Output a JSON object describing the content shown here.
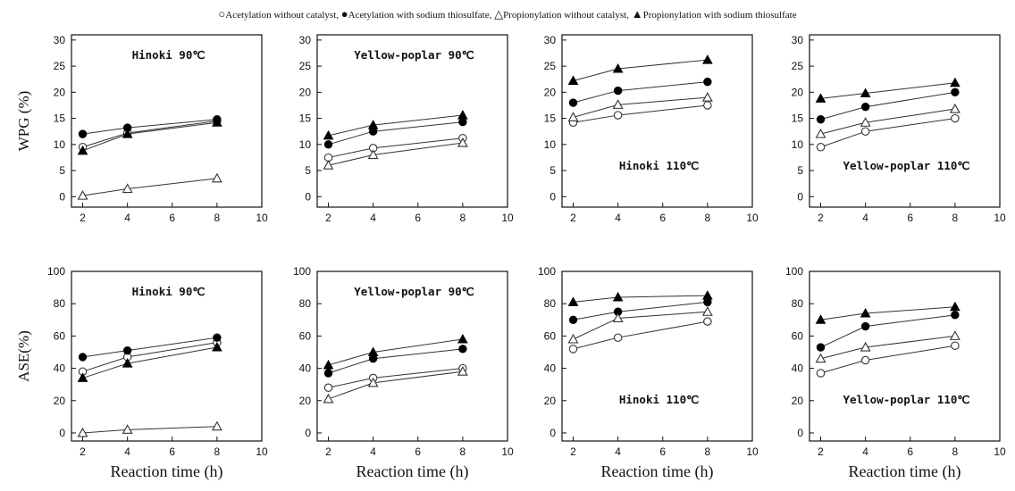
{
  "legend": {
    "s1_sym": "○",
    "s1_label": "Acetylation without catalyst,",
    "s2_sym": "●",
    "s2_label": "Acetylation with sodium thiosulfate,",
    "s3_sym": "△",
    "s3_label": "Propionylation without catalyst,",
    "s4_sym": "▲",
    "s4_label": "Propionylation with sodium thiosulfate"
  },
  "colors": {
    "axis": "#111111",
    "series": "#333333"
  },
  "chart_data": [
    {
      "type": "line",
      "title": "Hinoki 90℃",
      "title_pos": "top",
      "ylabel": "WPG (%)",
      "xlabel": "",
      "xlim": [
        1.5,
        10
      ],
      "ylim": [
        -2,
        31
      ],
      "xticks": [
        2,
        4,
        6,
        8,
        10
      ],
      "yticks": [
        0,
        5,
        10,
        15,
        20,
        25,
        30
      ],
      "x": [
        2,
        4,
        8
      ],
      "series": [
        {
          "marker": "open-circle",
          "values": [
            9.5,
            12.2,
            14.5
          ]
        },
        {
          "marker": "filled-circle",
          "values": [
            12.0,
            13.2,
            14.8
          ]
        },
        {
          "marker": "open-triangle",
          "values": [
            0.2,
            1.5,
            3.5
          ]
        },
        {
          "marker": "filled-triangle",
          "values": [
            8.8,
            12.0,
            14.2
          ]
        }
      ]
    },
    {
      "type": "line",
      "title": "Yellow-poplar 90℃",
      "title_pos": "top",
      "ylabel": "",
      "xlabel": "",
      "xlim": [
        1.5,
        10
      ],
      "ylim": [
        -2,
        31
      ],
      "xticks": [
        2,
        4,
        6,
        8,
        10
      ],
      "yticks": [
        0,
        5,
        10,
        15,
        20,
        25,
        30
      ],
      "x": [
        2,
        4,
        8
      ],
      "series": [
        {
          "marker": "open-circle",
          "values": [
            7.5,
            9.3,
            11.2
          ]
        },
        {
          "marker": "filled-circle",
          "values": [
            10.0,
            12.5,
            14.3
          ]
        },
        {
          "marker": "open-triangle",
          "values": [
            6.0,
            8.0,
            10.3
          ]
        },
        {
          "marker": "filled-triangle",
          "values": [
            11.7,
            13.7,
            15.6
          ]
        }
      ]
    },
    {
      "type": "line",
      "title": "Hinoki 110℃",
      "title_pos": "bottom",
      "ylabel": "",
      "xlabel": "",
      "xlim": [
        1.5,
        10
      ],
      "ylim": [
        -2,
        31
      ],
      "xticks": [
        2,
        4,
        6,
        8,
        10
      ],
      "yticks": [
        0,
        5,
        10,
        15,
        20,
        25,
        30
      ],
      "x": [
        2,
        4,
        8
      ],
      "series": [
        {
          "marker": "open-circle",
          "values": [
            14.2,
            15.6,
            17.5
          ]
        },
        {
          "marker": "filled-circle",
          "values": [
            18.0,
            20.3,
            22.0
          ]
        },
        {
          "marker": "open-triangle",
          "values": [
            15.2,
            17.6,
            19.0
          ]
        },
        {
          "marker": "filled-triangle",
          "values": [
            22.2,
            24.5,
            26.2
          ]
        }
      ]
    },
    {
      "type": "line",
      "title": "Yellow-poplar 110℃",
      "title_pos": "bottom",
      "ylabel": "",
      "xlabel": "",
      "xlim": [
        1.5,
        10
      ],
      "ylim": [
        -2,
        31
      ],
      "xticks": [
        2,
        4,
        6,
        8,
        10
      ],
      "yticks": [
        0,
        5,
        10,
        15,
        20,
        25,
        30
      ],
      "x": [
        2,
        4,
        8
      ],
      "series": [
        {
          "marker": "open-circle",
          "values": [
            9.5,
            12.5,
            15.0
          ]
        },
        {
          "marker": "filled-circle",
          "values": [
            14.8,
            17.2,
            20.0
          ]
        },
        {
          "marker": "open-triangle",
          "values": [
            12.0,
            14.2,
            16.8
          ]
        },
        {
          "marker": "filled-triangle",
          "values": [
            18.8,
            19.8,
            21.8
          ]
        }
      ]
    },
    {
      "type": "line",
      "title": "Hinoki 90℃",
      "title_pos": "top",
      "ylabel": "ASE(%)",
      "xlabel": "Reaction time (h)",
      "xlim": [
        1.5,
        10
      ],
      "ylim": [
        -5,
        100
      ],
      "xticks": [
        2,
        4,
        6,
        8,
        10
      ],
      "yticks": [
        0,
        20,
        40,
        60,
        80,
        100
      ],
      "x": [
        2,
        4,
        8
      ],
      "series": [
        {
          "marker": "open-circle",
          "values": [
            38,
            47,
            56
          ]
        },
        {
          "marker": "filled-circle",
          "values": [
            47,
            51,
            59
          ]
        },
        {
          "marker": "open-triangle",
          "values": [
            0,
            2,
            4
          ]
        },
        {
          "marker": "filled-triangle",
          "values": [
            34,
            43,
            53
          ]
        }
      ]
    },
    {
      "type": "line",
      "title": "Yellow-poplar 90℃",
      "title_pos": "top",
      "ylabel": "",
      "xlabel": "Reaction time (h)",
      "xlim": [
        1.5,
        10
      ],
      "ylim": [
        -5,
        100
      ],
      "xticks": [
        2,
        4,
        6,
        8,
        10
      ],
      "yticks": [
        0,
        20,
        40,
        60,
        80,
        100
      ],
      "x": [
        2,
        4,
        8
      ],
      "series": [
        {
          "marker": "open-circle",
          "values": [
            28,
            34,
            40
          ]
        },
        {
          "marker": "filled-circle",
          "values": [
            37,
            46,
            52
          ]
        },
        {
          "marker": "open-triangle",
          "values": [
            21,
            31,
            38
          ]
        },
        {
          "marker": "filled-triangle",
          "values": [
            42,
            50,
            58
          ]
        }
      ]
    },
    {
      "type": "line",
      "title": "Hinoki 110℃",
      "title_pos": "bottom",
      "ylabel": "",
      "xlabel": "Reaction time (h)",
      "xlim": [
        1.5,
        10
      ],
      "ylim": [
        -5,
        100
      ],
      "xticks": [
        2,
        4,
        6,
        8,
        10
      ],
      "yticks": [
        0,
        20,
        40,
        60,
        80,
        100
      ],
      "x": [
        2,
        4,
        8
      ],
      "series": [
        {
          "marker": "open-circle",
          "values": [
            52,
            59,
            69
          ]
        },
        {
          "marker": "filled-circle",
          "values": [
            70,
            75,
            81
          ]
        },
        {
          "marker": "open-triangle",
          "values": [
            58,
            71,
            75
          ]
        },
        {
          "marker": "filled-triangle",
          "values": [
            81,
            84,
            85
          ]
        }
      ]
    },
    {
      "type": "line",
      "title": "Yellow-poplar 110℃",
      "title_pos": "bottom",
      "ylabel": "",
      "xlabel": "Reaction time (h)",
      "xlim": [
        1.5,
        10
      ],
      "ylim": [
        -5,
        100
      ],
      "xticks": [
        2,
        4,
        6,
        8,
        10
      ],
      "yticks": [
        0,
        20,
        40,
        60,
        80,
        100
      ],
      "x": [
        2,
        4,
        8
      ],
      "series": [
        {
          "marker": "open-circle",
          "values": [
            37,
            45,
            54
          ]
        },
        {
          "marker": "filled-circle",
          "values": [
            53,
            66,
            73
          ]
        },
        {
          "marker": "open-triangle",
          "values": [
            46,
            53,
            60
          ]
        },
        {
          "marker": "filled-triangle",
          "values": [
            70,
            74,
            78
          ]
        }
      ]
    }
  ]
}
